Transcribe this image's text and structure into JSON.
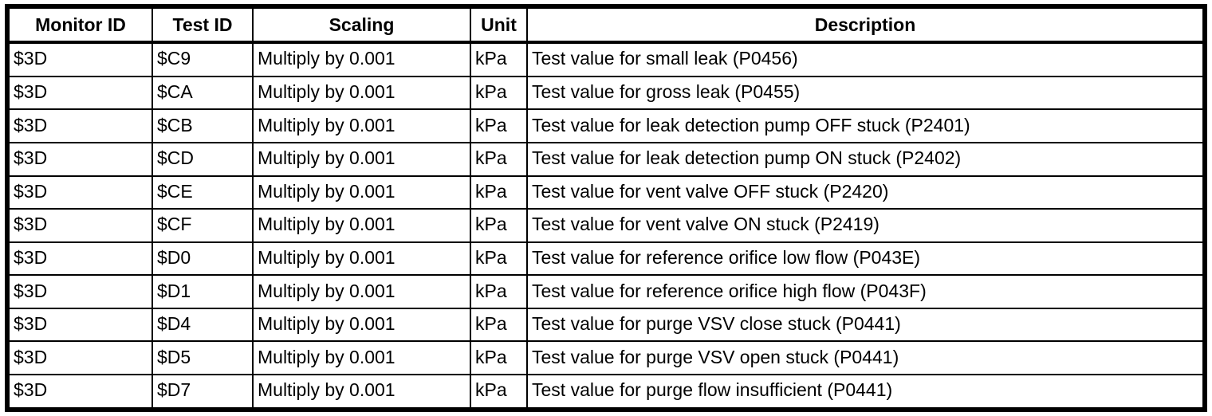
{
  "colors": {
    "border": "#000000",
    "text": "#000000",
    "background": "#ffffff"
  },
  "table": {
    "headers": [
      "Monitor ID",
      "Test ID",
      "Scaling",
      "Unit",
      "Description"
    ],
    "rows": [
      [
        "$3D",
        "$C9",
        "Multiply by 0.001",
        "kPa",
        "Test value for small leak (P0456)"
      ],
      [
        "$3D",
        "$CA",
        "Multiply by 0.001",
        "kPa",
        "Test value for gross leak (P0455)"
      ],
      [
        "$3D",
        "$CB",
        "Multiply by 0.001",
        "kPa",
        "Test value for leak detection pump OFF stuck (P2401)"
      ],
      [
        "$3D",
        "$CD",
        "Multiply by 0.001",
        "kPa",
        "Test value for leak detection pump ON stuck (P2402)"
      ],
      [
        "$3D",
        "$CE",
        "Multiply by 0.001",
        "kPa",
        "Test value for vent valve OFF stuck (P2420)"
      ],
      [
        "$3D",
        "$CF",
        "Multiply by 0.001",
        "kPa",
        "Test value for vent valve ON stuck (P2419)"
      ],
      [
        "$3D",
        "$D0",
        "Multiply by 0.001",
        "kPa",
        "Test value for reference orifice low flow (P043E)"
      ],
      [
        "$3D",
        "$D1",
        "Multiply by 0.001",
        "kPa",
        "Test value for reference orifice high flow (P043F)"
      ],
      [
        "$3D",
        "$D4",
        "Multiply by 0.001",
        "kPa",
        "Test value for purge VSV close stuck (P0441)"
      ],
      [
        "$3D",
        "$D5",
        "Multiply by 0.001",
        "kPa",
        "Test value for purge VSV open stuck (P0441)"
      ],
      [
        "$3D",
        "$D7",
        "Multiply by 0.001",
        "kPa",
        "Test value for purge flow insufficient (P0441)"
      ]
    ]
  }
}
